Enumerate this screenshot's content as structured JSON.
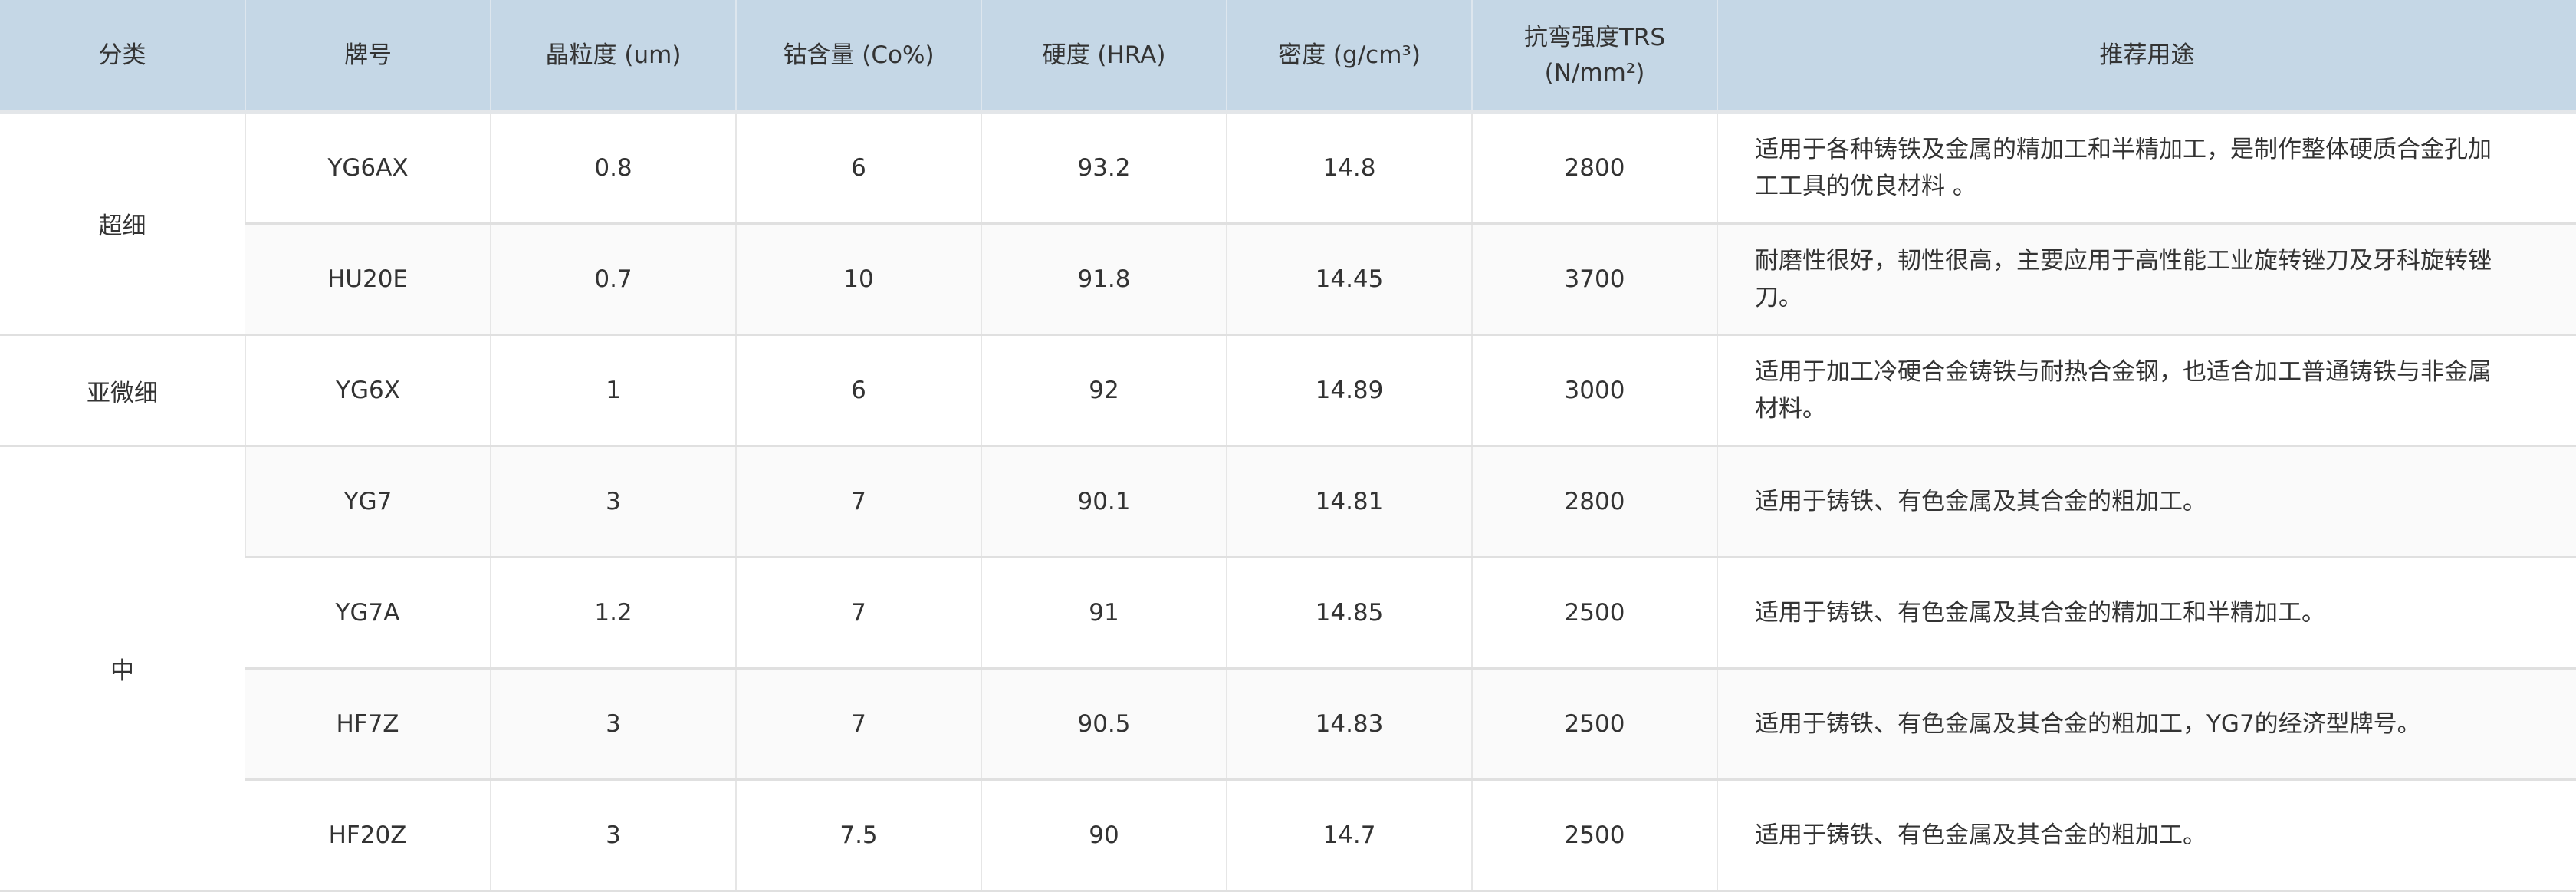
{
  "header": {
    "category": "分类",
    "grade": "牌号",
    "grain": "晶粒度 (um)",
    "cobalt": "钴含量 (Co%)",
    "hardness": "硬度 (HRA)",
    "density": "密度 (g/cm³)",
    "trs_line1": "抗弯强度TRS",
    "trs_line2": "(N/mm²)",
    "usage": "推荐用途"
  },
  "colors": {
    "header_bg": "#c5d7e6",
    "alt_row_bg": "#fafafa"
  },
  "categories": [
    "超细",
    "亚微细",
    "中"
  ],
  "rows": [
    {
      "grade": "YG6AX",
      "grain": "0.8",
      "cobalt": "6",
      "hardness": "93.2",
      "density": "14.8",
      "trs": "2800",
      "usage": "适用于各种铸铁及金属的精加工和半精加工，是制作整体硬质合金孔加工工具的优良材料 。"
    },
    {
      "grade": "HU20E",
      "grain": "0.7",
      "cobalt": "10",
      "hardness": "91.8",
      "density": "14.45",
      "trs": "3700",
      "usage": "耐磨性很好，韧性很高，主要应用于高性能工业旋转锉刀及牙科旋转锉刀。"
    },
    {
      "grade": "YG6X",
      "grain": "1",
      "cobalt": "6",
      "hardness": "92",
      "density": "14.89",
      "trs": "3000",
      "usage": "适用于加工冷硬合金铸铁与耐热合金钢，也适合加工普通铸铁与非金属材料。"
    },
    {
      "grade": "YG7",
      "grain": "3",
      "cobalt": "7",
      "hardness": "90.1",
      "density": "14.81",
      "trs": "2800",
      "usage": "适用于铸铁、有色金属及其合金的粗加工。"
    },
    {
      "grade": "YG7A",
      "grain": "1.2",
      "cobalt": "7",
      "hardness": "91",
      "density": "14.85",
      "trs": "2500",
      "usage": "适用于铸铁、有色金属及其合金的精加工和半精加工。"
    },
    {
      "grade": "HF7Z",
      "grain": "3",
      "cobalt": "7",
      "hardness": "90.5",
      "density": "14.83",
      "trs": "2500",
      "usage": "适用于铸铁、有色金属及其合金的粗加工，YG7的经济型牌号。"
    },
    {
      "grade": "HF20Z",
      "grain": "3",
      "cobalt": "7.5",
      "hardness": "90",
      "density": "14.7",
      "trs": "2500",
      "usage": "适用于铸铁、有色金属及其合金的粗加工。"
    }
  ]
}
